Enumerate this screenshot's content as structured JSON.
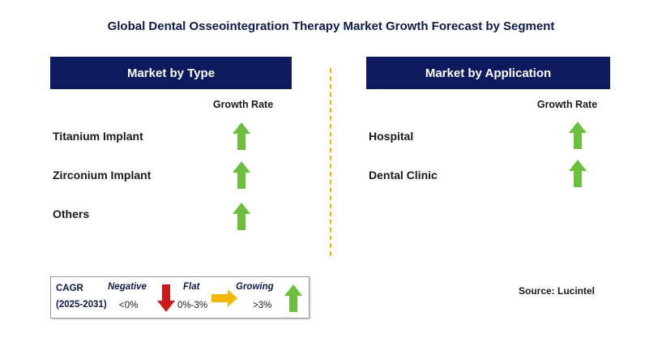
{
  "title": "Global Dental Osseointegration Therapy Market Growth Forecast by Segment",
  "left_panel": {
    "header": "Market by Type",
    "growth_rate_label": "Growth Rate",
    "rows": [
      {
        "label": "Titanium Implant",
        "trend": "growing"
      },
      {
        "label": "Zirconium Implant",
        "trend": "growing"
      },
      {
        "label": "Others",
        "trend": "growing"
      }
    ]
  },
  "right_panel": {
    "header": "Market by Application",
    "growth_rate_label": "Growth Rate",
    "rows": [
      {
        "label": "Hospital",
        "trend": "growing"
      },
      {
        "label": "Dental Clinic",
        "trend": "growing"
      }
    ]
  },
  "legend": {
    "cagr_label": "CAGR",
    "period": "(2025-2031)",
    "negative_label": "Negative",
    "negative_value": "<0%",
    "flat_label": "Flat",
    "flat_value": "0%-3%",
    "growing_label": "Growing",
    "growing_value": ">3%"
  },
  "source": "Source: Lucintel",
  "colors": {
    "header_bg": "#0d1b5e",
    "growing_arrow": "#6abf3c",
    "negative_arrow": "#cc1a1a",
    "flat_arrow": "#f5b800",
    "divider": "#f0b400"
  }
}
